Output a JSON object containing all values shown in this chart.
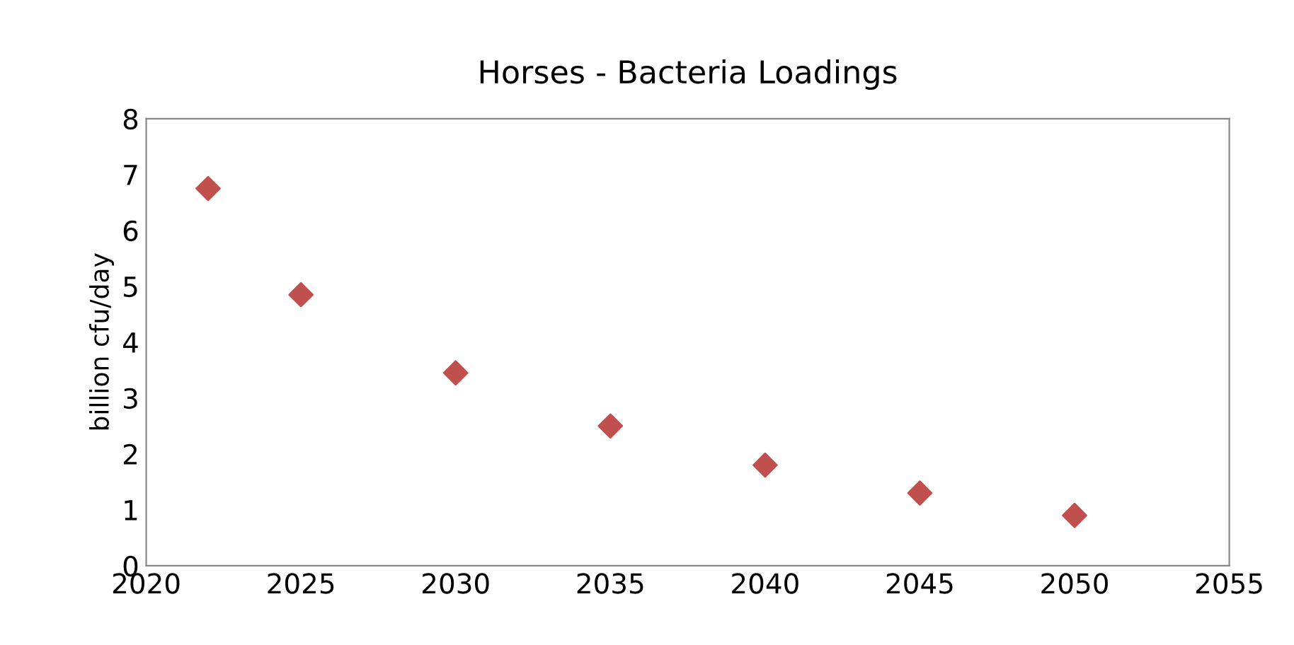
{
  "chart_data": {
    "type": "scatter",
    "title": "Horses - Bacteria Loadings",
    "ylabel": "billion cfu/day",
    "x": [
      2022,
      2025,
      2030,
      2035,
      2040,
      2045,
      2050
    ],
    "series": [
      {
        "color": "#c0504d",
        "values": [
          6.75,
          4.85,
          3.45,
          2.5,
          1.8,
          1.3,
          0.9
        ]
      }
    ],
    "marker": "diamond",
    "grid": false,
    "legend": false,
    "xlim": [
      2020,
      2055
    ],
    "xticks": [
      2020,
      2025,
      2030,
      2035,
      2040,
      2045,
      2050,
      2055
    ],
    "ylim": [
      0,
      8
    ],
    "yticks": [
      0,
      1,
      2,
      3,
      4,
      5,
      6,
      7,
      8
    ]
  }
}
